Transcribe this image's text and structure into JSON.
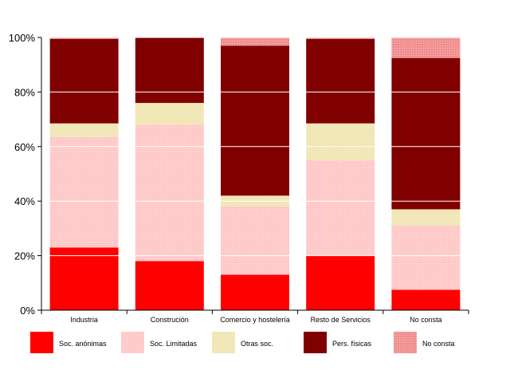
{
  "chart_data": {
    "type": "bar",
    "stacked": true,
    "categories": [
      "Industria",
      "Construción",
      "Comercio y hostelería",
      "Resto de Servicios",
      "No consta"
    ],
    "series": [
      {
        "name": "Soc. anónimas",
        "color": "#ff0000",
        "values": [
          23,
          18,
          13,
          20,
          7.5
        ]
      },
      {
        "name": "Soc. Limitadas",
        "color": "#ffc8c8",
        "values": [
          40.5,
          50,
          25,
          35,
          23.5
        ]
      },
      {
        "name": "Otras soc.",
        "color": "#f0e6b4",
        "values": [
          5,
          8,
          4,
          13.5,
          6
        ]
      },
      {
        "name": "Pers. físicas",
        "color": "#800000",
        "values": [
          31,
          24,
          55,
          31,
          55.5
        ]
      },
      {
        "name": "No consta",
        "color": "#f09090",
        "values": [
          0.5,
          0,
          3,
          0.5,
          7.5
        ]
      }
    ],
    "yticks": [
      "0%",
      "20%",
      "40%",
      "60%",
      "80%",
      "100%"
    ],
    "ylim": [
      0,
      100
    ],
    "grid": true,
    "legend": "bottom"
  }
}
